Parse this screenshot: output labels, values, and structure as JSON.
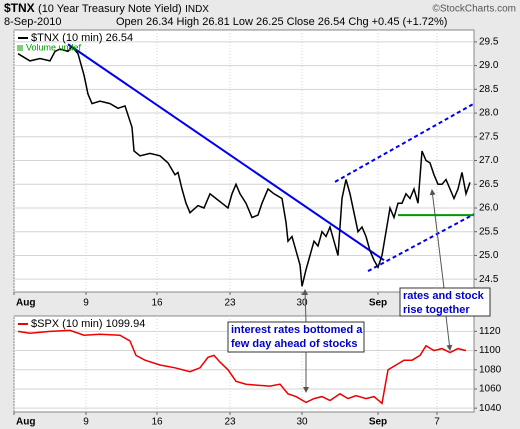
{
  "header": {
    "symbol": "$TNX",
    "name": "(10 Year Treasury Note Yield)",
    "exchange": "INDX",
    "credit": "©StockCharts.com",
    "date": "8-Sep-2010",
    "quote": "Open 26.34 High 26.81 Low 26.25 Close 26.54 Chg +0.45 (+1.72%)"
  },
  "chart_data": [
    {
      "type": "line",
      "volume_label": "Volume undef",
      "xlim": [
        0,
        460
      ],
      "ylim": [
        24.23,
        29.75
      ],
      "xticks": [
        {
          "value": 0,
          "label": "Aug"
        },
        {
          "value": 72,
          "label": "9"
        },
        {
          "value": 143,
          "label": "16"
        },
        {
          "value": 216,
          "label": "23"
        },
        {
          "value": 288,
          "label": "30"
        },
        {
          "value": 364,
          "label": "Sep"
        },
        {
          "value": 423,
          "label": "7"
        }
      ],
      "yticks": [
        24.5,
        {
          "value": 25,
          "label": "25.0"
        },
        25.5,
        {
          "value": 26,
          "label": "26.0"
        },
        26.5,
        {
          "value": 27,
          "label": "27.0"
        },
        27.5,
        {
          "value": 28,
          "label": "28.0"
        },
        28.5,
        {
          "value": 29,
          "label": "29.0"
        },
        29.5
      ],
      "grid": true,
      "x": [
        4,
        16,
        26,
        36,
        41,
        46,
        54,
        58,
        64,
        70,
        74,
        78,
        86,
        96,
        104,
        111,
        118,
        120,
        126,
        136,
        146,
        154,
        161,
        164,
        168,
        172,
        176,
        184,
        190,
        196,
        202,
        208,
        214,
        218,
        222,
        226,
        232,
        238,
        244,
        248,
        254,
        260,
        268,
        272,
        274,
        278,
        282,
        286,
        288,
        292,
        296,
        300,
        304,
        308,
        312,
        316,
        320,
        324,
        328,
        332,
        336,
        340,
        344,
        348,
        352,
        356,
        360,
        364,
        368,
        372,
        376,
        380,
        384,
        388,
        392,
        396,
        400,
        404,
        408,
        412,
        416,
        420,
        424,
        428,
        432,
        436,
        440,
        444,
        448,
        452,
        456
      ],
      "series": [
        {
          "name": "$TNX (10 min) 26.54",
          "color": "#000000",
          "values": [
            29.25,
            29.1,
            29.15,
            29.1,
            29.3,
            29.35,
            29.3,
            29.4,
            29.25,
            28.8,
            28.4,
            28.2,
            28.25,
            28.2,
            28.1,
            28.15,
            27.7,
            27.2,
            27.1,
            27.15,
            27.1,
            26.95,
            26.7,
            26.75,
            26.4,
            26.1,
            25.9,
            26.05,
            26.0,
            26.3,
            26.2,
            26.1,
            26.0,
            26.3,
            26.5,
            26.3,
            26.1,
            25.8,
            25.85,
            26.1,
            26.4,
            26.3,
            26.2,
            25.7,
            25.3,
            25.4,
            25.1,
            24.8,
            24.35,
            24.7,
            25.0,
            25.3,
            25.2,
            25.5,
            25.4,
            25.6,
            25.3,
            25.0,
            26.2,
            26.6,
            26.3,
            25.9,
            25.5,
            25.6,
            25.4,
            25.1,
            24.9,
            24.75,
            25.0,
            25.5,
            26.0,
            25.8,
            26.1,
            26.1,
            26.3,
            26.2,
            26.4,
            26.1,
            27.2,
            27.0,
            26.95,
            26.7,
            26.5,
            26.5,
            26.6,
            26.4,
            26.2,
            26.4,
            26.75,
            26.3,
            26.54
          ]
        }
      ],
      "lines": [
        {
          "color": "#0000ee",
          "style": "solid",
          "x": [
            54,
            370
          ],
          "y": [
            29.45,
            24.9
          ]
        },
        {
          "color": "#0000ee",
          "style": "dashed",
          "x": [
            321,
            460
          ],
          "y": [
            26.55,
            28.2
          ]
        },
        {
          "color": "#0000ee",
          "style": "dashed",
          "x": [
            354,
            460
          ],
          "y": [
            24.67,
            25.87
          ]
        },
        {
          "color": "#009900",
          "style": "solid",
          "x": [
            384,
            460
          ],
          "y": [
            25.85,
            25.85
          ]
        }
      ],
      "annotations": [
        {
          "lines": [
            "rates and stock",
            "rise together"
          ]
        }
      ]
    },
    {
      "type": "line",
      "xlim": [
        0,
        460
      ],
      "ylim": [
        1036,
        1136
      ],
      "xticks": [
        {
          "value": 0,
          "label": "Aug"
        },
        {
          "value": 72,
          "label": "9"
        },
        {
          "value": 143,
          "label": "16"
        },
        {
          "value": 216,
          "label": "23"
        },
        {
          "value": 288,
          "label": "30"
        },
        {
          "value": 364,
          "label": "Sep"
        },
        {
          "value": 423,
          "label": "7"
        }
      ],
      "yticks": [
        1040,
        1060,
        1080,
        1100,
        1120
      ],
      "grid": true,
      "x": [
        4,
        16,
        36,
        56,
        70,
        86,
        106,
        116,
        122,
        131,
        146,
        161,
        176,
        186,
        194,
        200,
        206,
        214,
        222,
        232,
        242,
        256,
        266,
        274,
        282,
        292,
        300,
        308,
        316,
        326,
        334,
        342,
        352,
        360,
        368,
        374,
        382,
        390,
        398,
        406,
        412,
        420,
        428,
        436,
        444,
        452
      ],
      "series": [
        {
          "name": "$SPX (10 min) 1099.94",
          "color": "#ee0000",
          "values": [
            1120,
            1118,
            1120,
            1121,
            1116,
            1117,
            1116,
            1110,
            1095,
            1090,
            1085,
            1082,
            1078,
            1082,
            1093,
            1095,
            1088,
            1080,
            1068,
            1065,
            1064,
            1063,
            1065,
            1055,
            1052,
            1046,
            1050,
            1052,
            1048,
            1055,
            1050,
            1053,
            1050,
            1052,
            1045,
            1080,
            1085,
            1090,
            1090,
            1095,
            1105,
            1100,
            1102,
            1098,
            1102,
            1099.94
          ]
        }
      ],
      "annotations": [
        {
          "lines": [
            "interest rates bottomed a",
            "few day ahead of stocks"
          ]
        }
      ]
    }
  ]
}
